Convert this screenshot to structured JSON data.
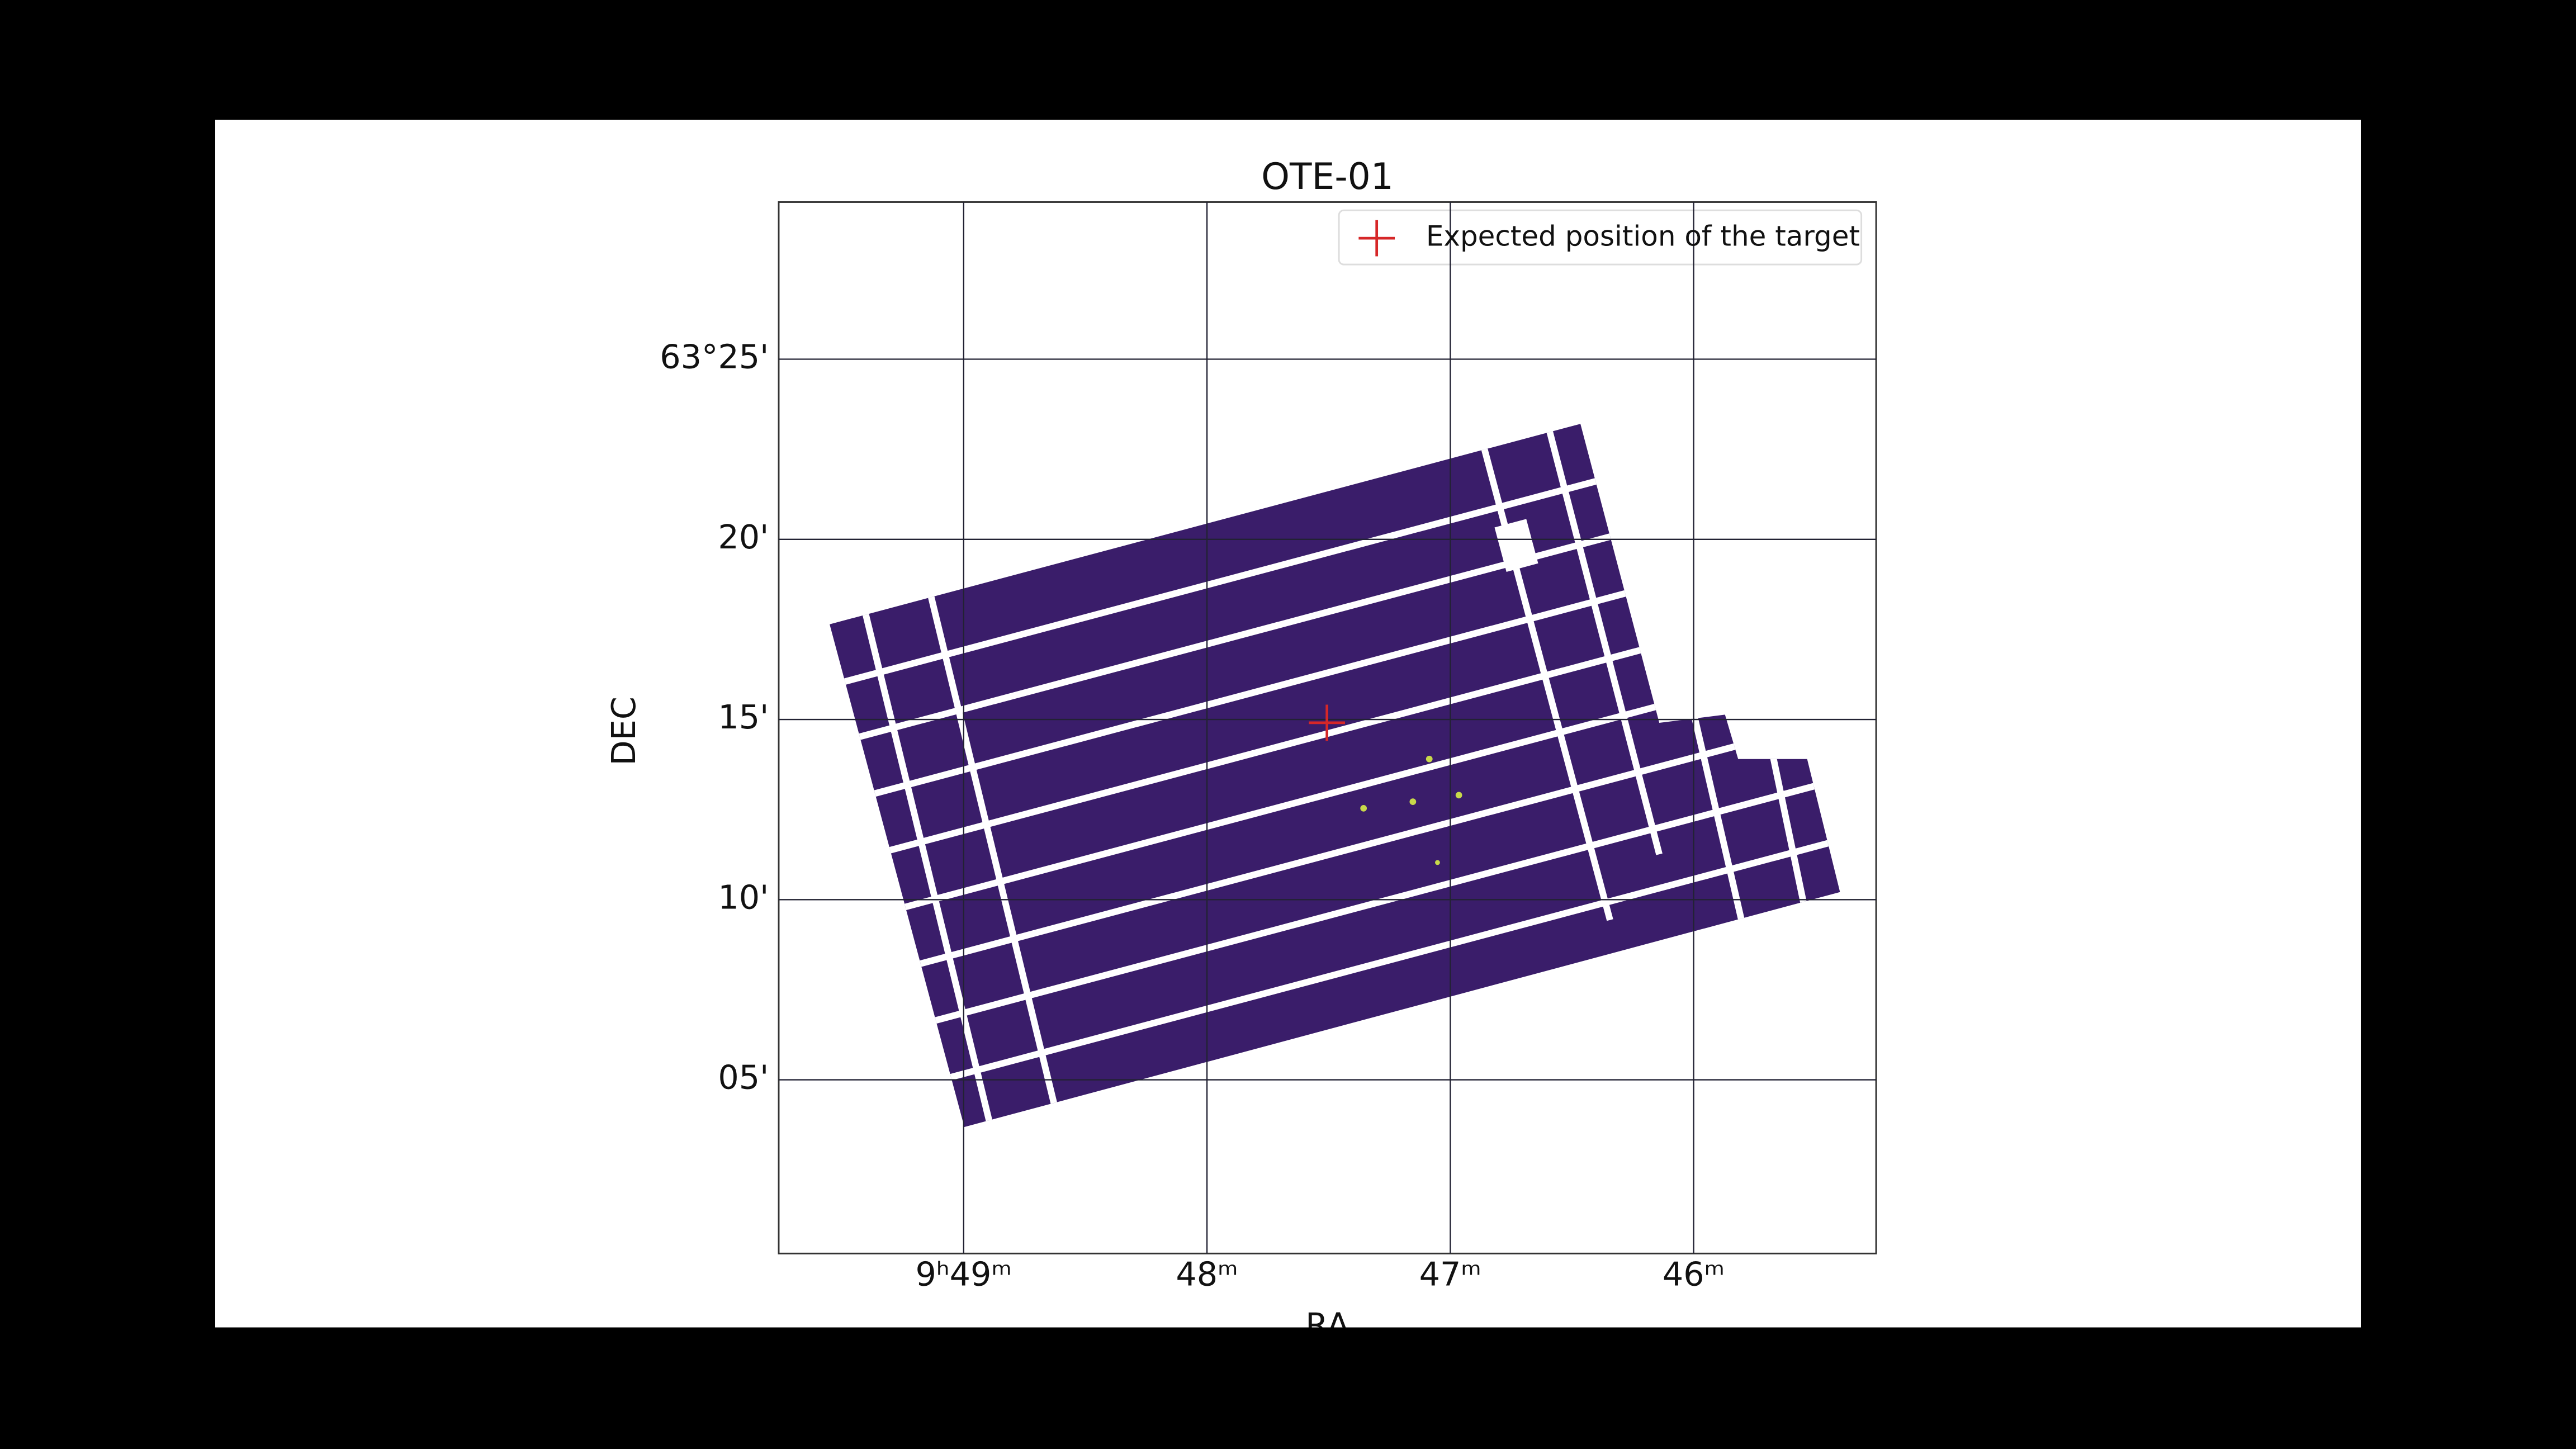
{
  "chart_data": {
    "type": "image",
    "title": "OTE-01",
    "xlabel": "RA",
    "ylabel": "DEC",
    "xlim": [
      49.76,
      45.25
    ],
    "ylim": [
      0.18,
      29.36
    ],
    "xticks": [
      {
        "value": 49,
        "label": "9ʰ49ᵐ"
      },
      {
        "value": 48,
        "label": "48ᵐ"
      },
      {
        "value": 47,
        "label": "47ᵐ"
      },
      {
        "value": 46,
        "label": "46ᵐ"
      }
    ],
    "yticks": [
      {
        "value": 25,
        "label": "63°25'"
      },
      {
        "value": 20,
        "label": "20'"
      },
      {
        "value": 15,
        "label": "15'"
      },
      {
        "value": 10,
        "label": "10'"
      },
      {
        "value": 5,
        "label": "05'"
      }
    ],
    "grid": true,
    "legend": "upper right",
    "series": [
      {
        "name": "Expected position of the target",
        "color": "#d62728",
        "marker": "+",
        "x": [
          47.507
        ],
        "y": [
          14.91
        ]
      }
    ]
  }
}
